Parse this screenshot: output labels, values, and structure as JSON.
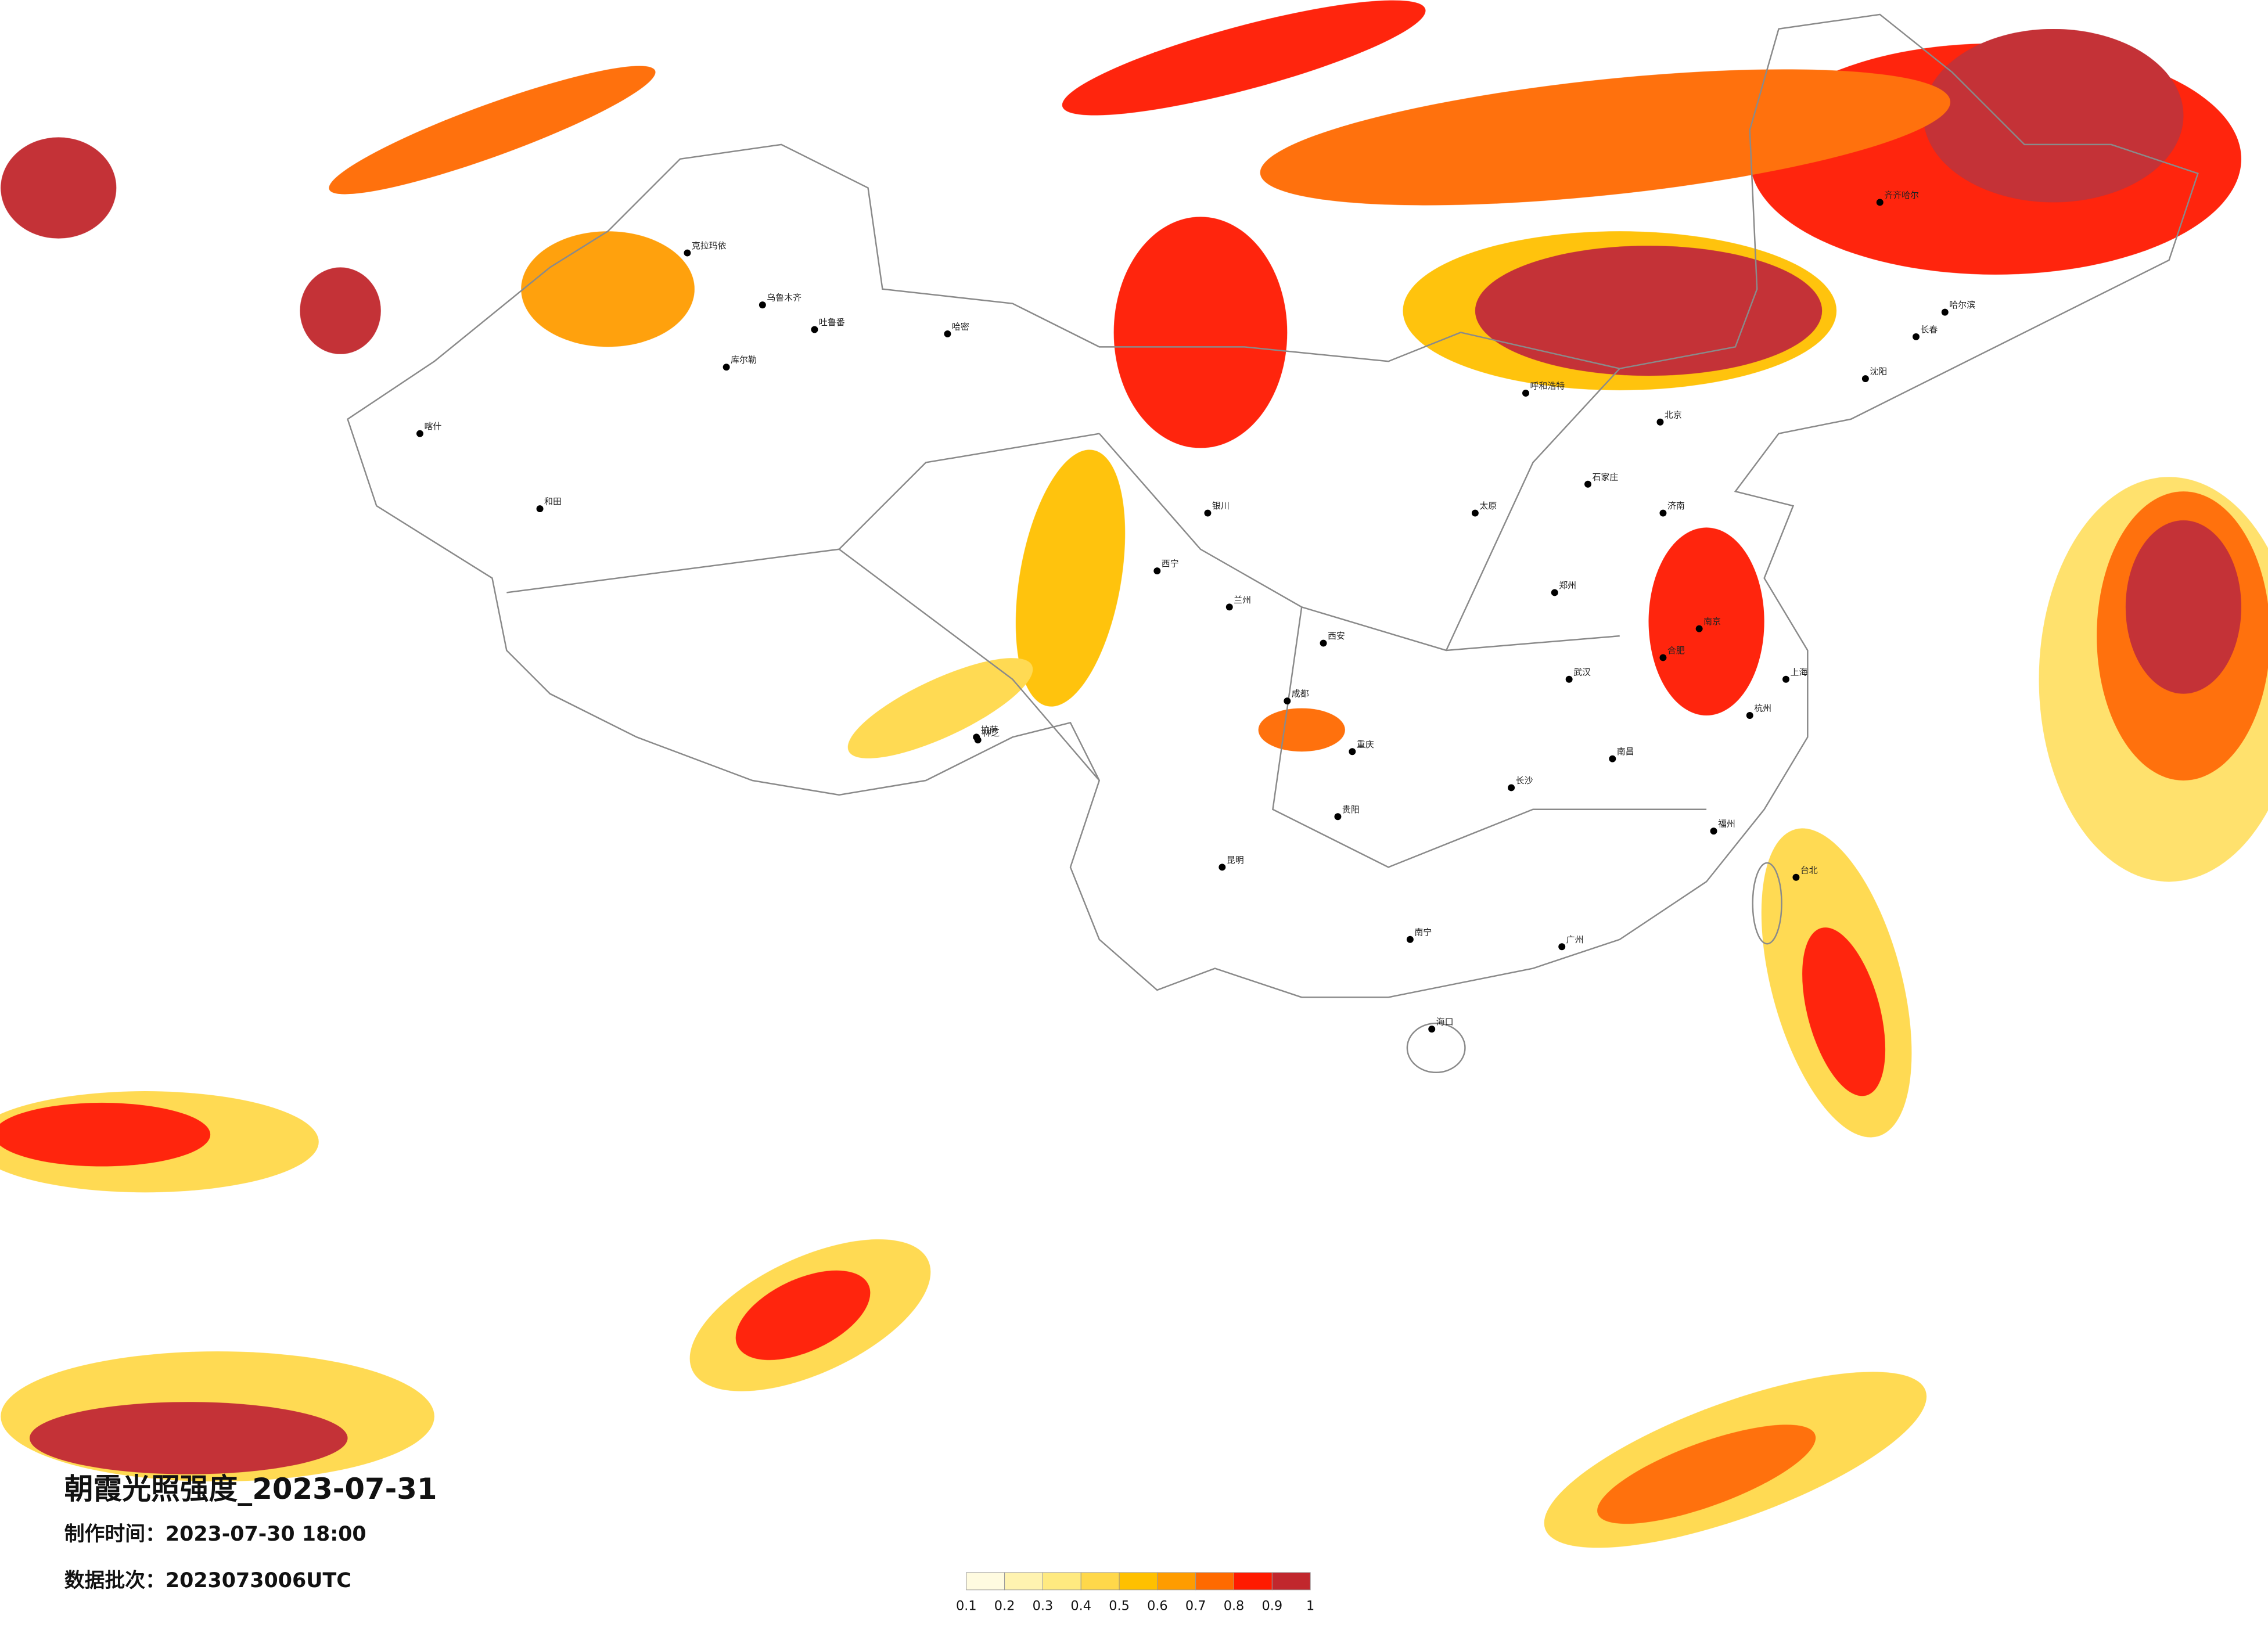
{
  "header": {
    "title": "朝霞光照强度_2023-07-31",
    "made_time": "制作时间：2023-07-30 18:00",
    "data_batch": "数据批次：2023073006UTC"
  },
  "legend": {
    "colors": [
      "#fffbe0",
      "#fff3b0",
      "#ffea80",
      "#ffd84a",
      "#ffc000",
      "#ff9c00",
      "#ff6a00",
      "#ff1a00",
      "#c1272d"
    ],
    "labels": [
      "0.1",
      "0.2",
      "0.3",
      "0.4",
      "0.5",
      "0.6",
      "0.7",
      "0.8",
      "0.9",
      "1"
    ]
  },
  "map": {
    "cities": [
      "克拉玛依",
      "乌鲁木齐",
      "吐鲁番",
      "哈密",
      "库尔勒",
      "喀什",
      "和田",
      "拉萨",
      "林芝",
      "呼和浩特",
      "北京",
      "石家庄",
      "济南",
      "郑州",
      "西安",
      "成都",
      "重庆",
      "贵阳",
      "昆明",
      "南宁",
      "广州",
      "长沙",
      "武汉",
      "南京",
      "上海",
      "杭州",
      "福州",
      "台北",
      "海口",
      "哈尔滨",
      "长春",
      "沈阳",
      "齐齐哈尔",
      "兰州",
      "西宁",
      "银川",
      "太原",
      "合肥",
      "南昌"
    ]
  }
}
